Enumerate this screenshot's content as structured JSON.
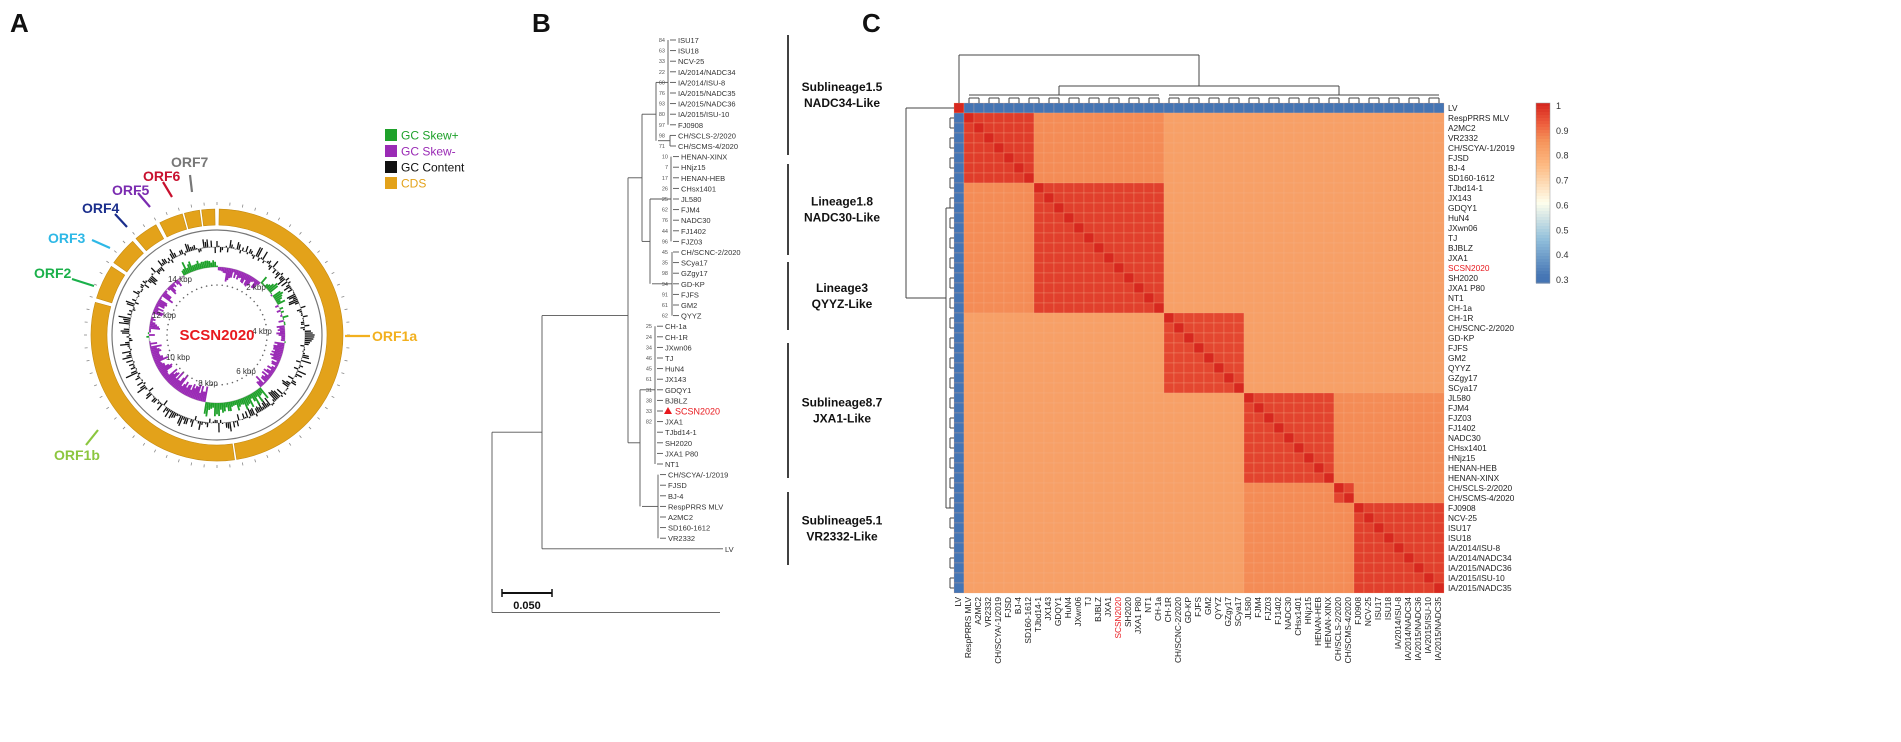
{
  "panels": {
    "a": "A",
    "b": "B",
    "c": "C"
  },
  "colors": {
    "orf": "#E3A21A",
    "gc_pos": "#1FA12B",
    "gc_neg": "#9A2BB5",
    "gc_content": "#111111",
    "orf2": "#1AB04A",
    "orf3": "#2EB8E6",
    "orf4": "#1A2E8C",
    "orf5": "#7A2BB0",
    "orf6": "#C8102E",
    "orf7": "#777777",
    "orf1a": "#F2B01E",
    "orf1b": "#8CC63F",
    "highlight": "#E8191E"
  },
  "genome_map": {
    "center_label": "SCSN2020",
    "legend": [
      {
        "label": "GC Skew+",
        "color": "#1FA12B"
      },
      {
        "label": "GC Skew-",
        "color": "#9A2BB5"
      },
      {
        "label": "GC Content",
        "color": "#111111"
      },
      {
        "label": "CDS",
        "color": "#E3A21A"
      }
    ],
    "orf_labels": [
      "ORF1a",
      "ORF1b",
      "ORF2",
      "ORF3",
      "ORF4",
      "ORF5",
      "ORF6",
      "ORF7"
    ],
    "kbp_ticks": [
      "2 kbp",
      "4 kbp",
      "6 kbp",
      "8 kbp",
      "10 kbp",
      "12 kbp",
      "14 kbp"
    ]
  },
  "tree": {
    "scale_label": "0.050",
    "tips": [
      "ISU17",
      "ISU18",
      "NCV-25",
      "IA/2014/NADC34",
      "IA/2014/ISU-8",
      "IA/2015/NADC35",
      "IA/2015/NADC36",
      "IA/2015/ISU-10",
      "FJ0908",
      "CH/SCLS-2/2020",
      "CH/SCMS-4/2020",
      "HENAN-XINX",
      "HNjz15",
      "HENAN-HEB",
      "CHsx1401",
      "JL580",
      "FJM4",
      "NADC30",
      "FJ1402",
      "FJZ03",
      "CH/SCNC-2/2020",
      "SCya17",
      "GZgy17",
      "GD-KP",
      "FJFS",
      "GM2",
      "QYYZ",
      "CH-1a",
      "CH-1R",
      "JXwn06",
      "TJ",
      "HuN4",
      "JX143",
      "GDQY1",
      "BJBLZ",
      "SCSN2020",
      "JXA1",
      "TJbd14-1",
      "SH2020",
      "JXA1 P80",
      "NT1",
      "CH/SCYA/-1/2019",
      "FJSD",
      "BJ-4",
      "RespPRRS MLV",
      "A2MC2",
      "SD160-1612",
      "VR2332",
      "LV"
    ],
    "bootstrap": [
      "84",
      "63",
      "33",
      "22",
      "60",
      "76",
      "93",
      "80",
      "97",
      "98",
      "71",
      "10",
      "7",
      "17",
      "26",
      "25",
      "62",
      "76",
      "44",
      "96",
      "45",
      "35",
      "98",
      "94",
      "91",
      "61",
      "62",
      "25",
      "24",
      "34",
      "46",
      "45",
      "61",
      "31",
      "38",
      "33",
      "82"
    ],
    "groups": [
      {
        "line1": "Sublineage1.5",
        "line2": "NADC34-Like"
      },
      {
        "line1": "Lineage1.8",
        "line2": "NADC30-Like"
      },
      {
        "line1": "Lineage3",
        "line2": "QYYZ-Like"
      },
      {
        "line1": "Sublineage8.7",
        "line2": "JXA1-Like"
      },
      {
        "line1": "Sublineage5.1",
        "line2": "VR2332-Like"
      }
    ]
  },
  "heatmap": {
    "rows": [
      "LV",
      "RespPRRS MLV",
      "A2MC2",
      "VR2332",
      "CH/SCYA/-1/2019",
      "FJSD",
      "BJ-4",
      "SD160-1612",
      "TJbd14-1",
      "JX143",
      "GDQY1",
      "HuN4",
      "JXwn06",
      "TJ",
      "BJBLZ",
      "JXA1",
      "SCSN2020",
      "SH2020",
      "JXA1 P80",
      "NT1",
      "CH-1a",
      "CH-1R",
      "CH/SCNC-2/2020",
      "GD-KP",
      "FJFS",
      "GM2",
      "QYYZ",
      "GZgy17",
      "SCya17",
      "JL580",
      "FJM4",
      "FJZ03",
      "FJ1402",
      "NADC30",
      "CHsx1401",
      "HNjz15",
      "HENAN-HEB",
      "HENAN-XINX",
      "CH/SCLS-2/2020",
      "CH/SCMS-4/2020",
      "FJ0908",
      "NCV-25",
      "ISU17",
      "ISU18",
      "IA/2014/ISU-8",
      "IA/2014/NADC34",
      "IA/2015/NADC36",
      "IA/2015/ISU-10",
      "IA/2015/NADC35"
    ],
    "highlight": "SCSN2020",
    "colorbar_ticks": [
      "1",
      "0.9",
      "0.8",
      "0.7",
      "0.6",
      "0.5",
      "0.4",
      "0.3"
    ],
    "blocks": [
      [
        1,
        8,
        0.97
      ],
      [
        8,
        21,
        0.965
      ],
      [
        21,
        29,
        0.955
      ],
      [
        29,
        38,
        0.96
      ],
      [
        38,
        40,
        0.96
      ],
      [
        40,
        49,
        0.965
      ]
    ]
  }
}
